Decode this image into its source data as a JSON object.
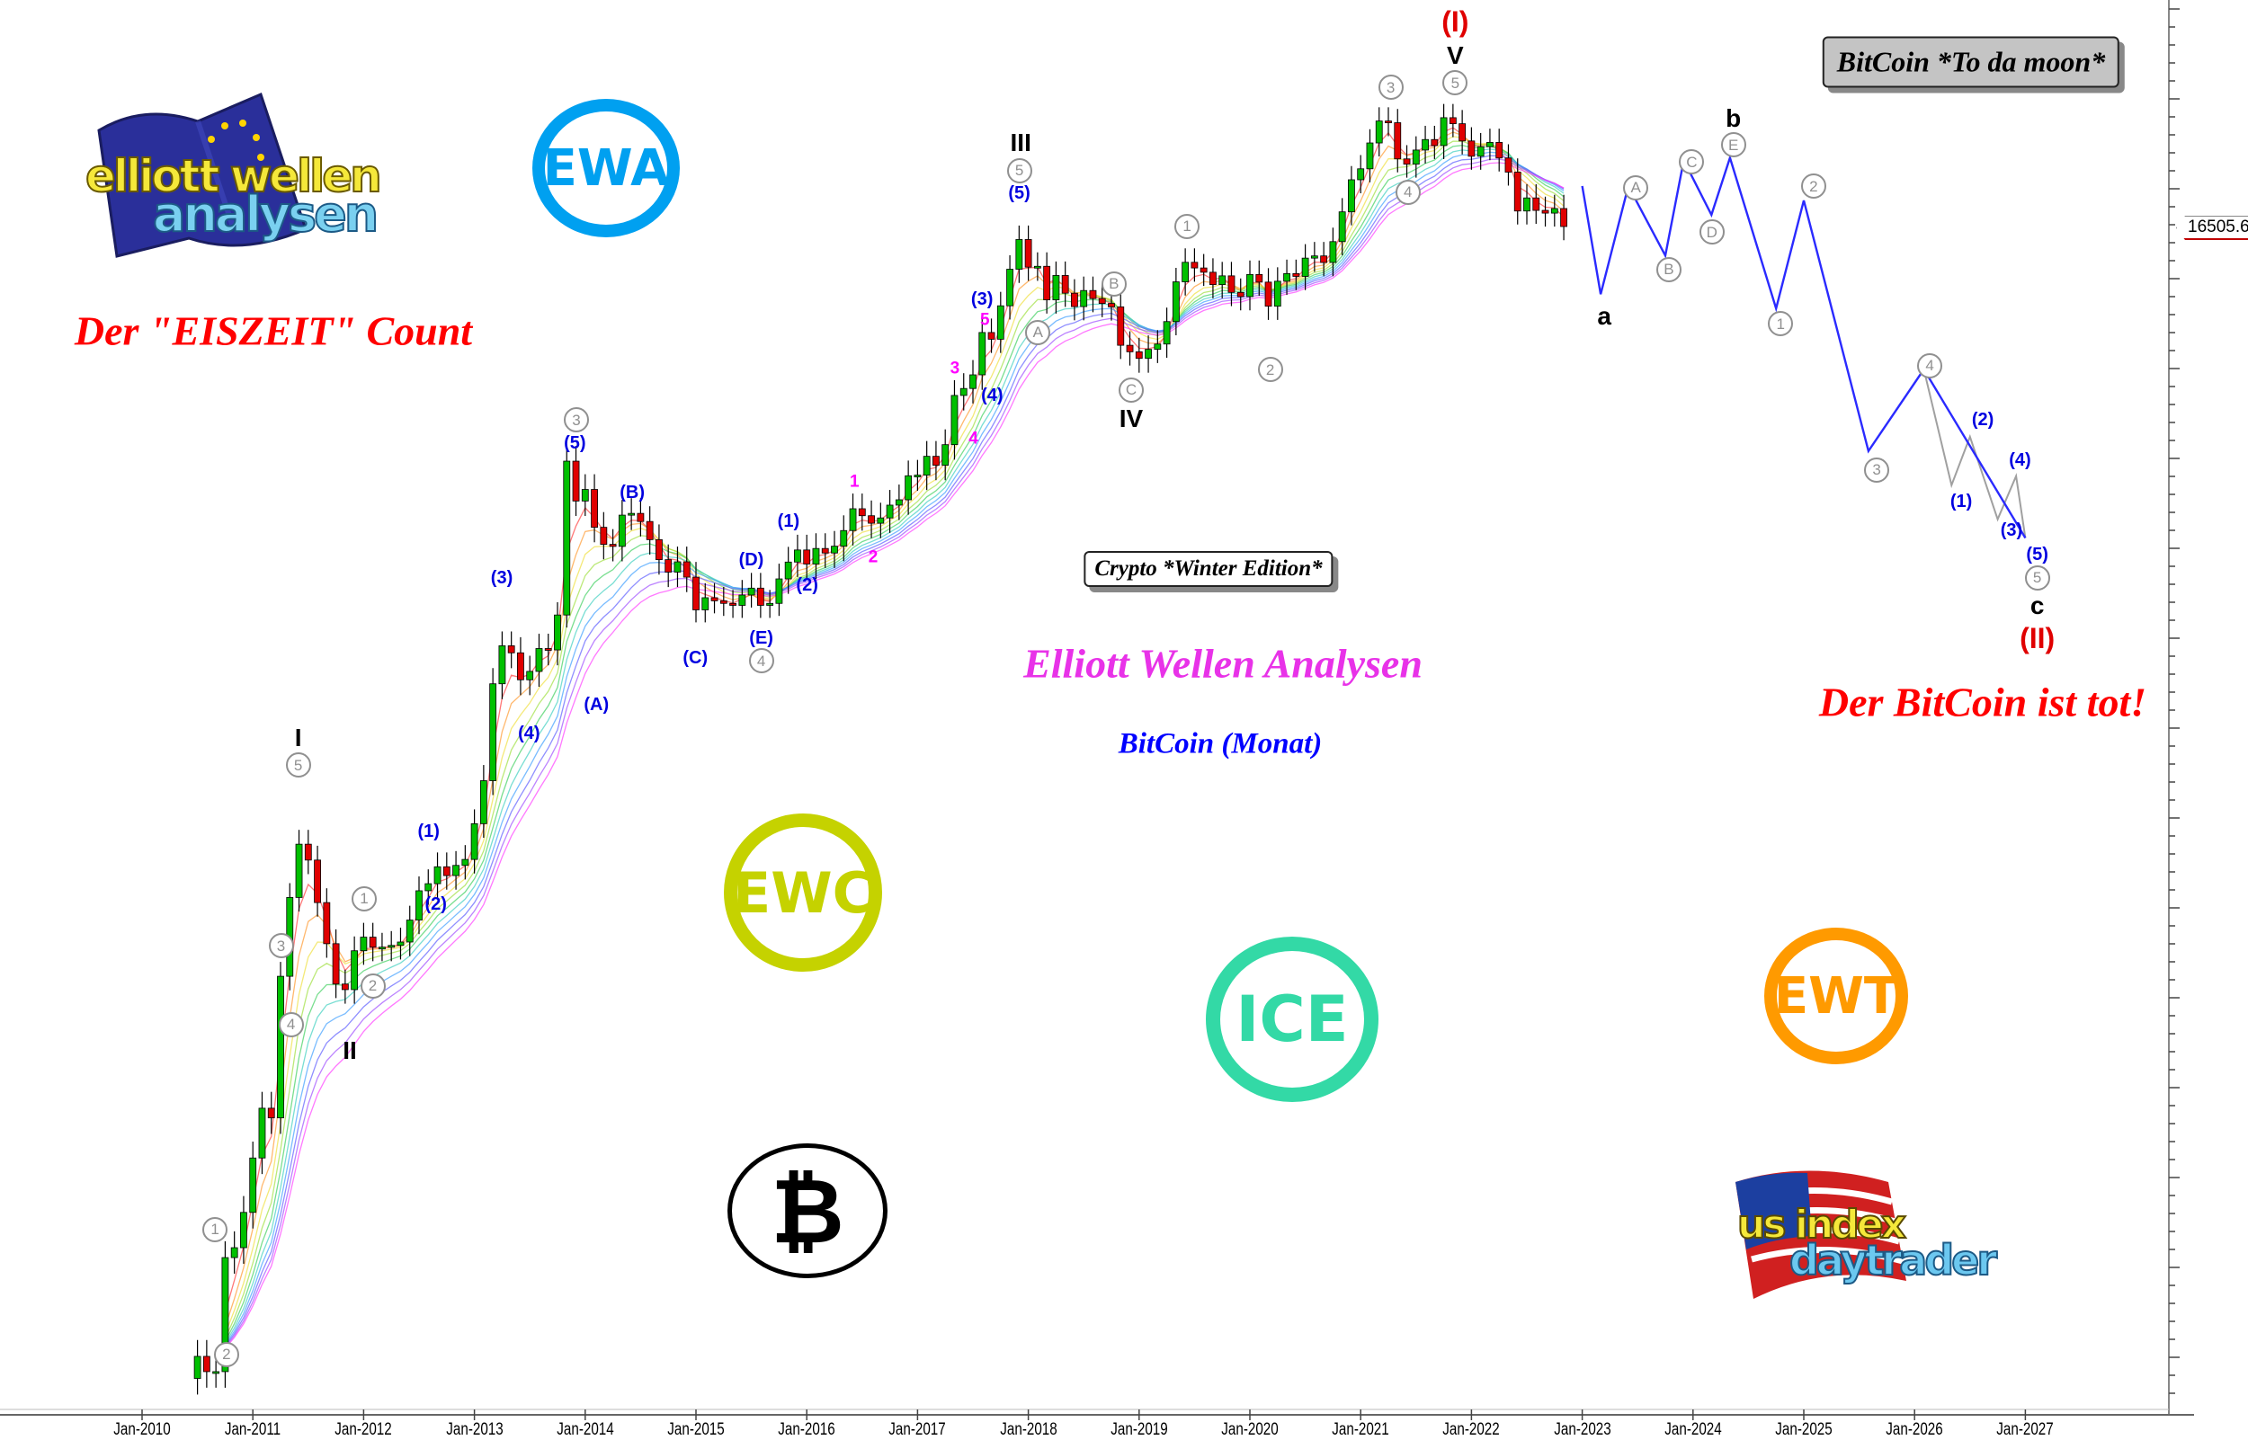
{
  "chart_data": {
    "type": "candlestick",
    "scale": "log",
    "series_start": "2010-07",
    "frequency": "monthly",
    "closes": [
      0.07,
      0.06,
      0.06,
      0.19,
      0.21,
      0.3,
      0.52,
      0.86,
      0.78,
      3.5,
      8.7,
      16.1,
      13.4,
      8.2,
      5.1,
      3.2,
      3.0,
      4.7,
      5.5,
      4.9,
      4.9,
      5.0,
      5.2,
      6.7,
      9.4,
      10.2,
      12.4,
      11.2,
      12.6,
      13.5,
      20.4,
      33.4,
      93,
      139,
      129,
      97,
      106,
      135,
      133,
      203,
      1129,
      732,
      830,
      550,
      457,
      447,
      628,
      640,
      586,
      481,
      387,
      338,
      378,
      320,
      217,
      254,
      244,
      236,
      230,
      263,
      284,
      230,
      236,
      314,
      377,
      430,
      369,
      437,
      416,
      448,
      531,
      673,
      624,
      575,
      609,
      700,
      742,
      963,
      970,
      1190,
      1080,
      1350,
      2300,
      2480,
      2875,
      4700,
      4340,
      6450,
      9950,
      14150,
      10200,
      10300,
      6920,
      9240,
      7490,
      6390,
      7730,
      7030,
      6630,
      6370,
      4040,
      3740,
      3460,
      3850,
      4100,
      5350,
      8570,
      10800,
      10100,
      9600,
      8290,
      9200,
      7560,
      7190,
      9350,
      8540,
      6420,
      8630,
      9450,
      9140,
      11350,
      11650,
      10780,
      13800,
      19700,
      29000,
      33100,
      45200,
      58900,
      57700,
      37300,
      35000,
      41500,
      47100,
      43800,
      61300,
      57000,
      46300,
      38500,
      43200,
      45500,
      37700,
      31800,
      19900,
      23300,
      20050,
      19400,
      20500,
      16505.63
    ],
    "last_price": "16505.63",
    "x_ticks": [
      "Jan-2010",
      "Jan-2011",
      "Jan-2012",
      "Jan-2013",
      "Jan-2014",
      "Jan-2015",
      "Jan-2016",
      "Jan-2017",
      "Jan-2018",
      "Jan-2019",
      "Jan-2020",
      "Jan-2021",
      "Jan-2022",
      "Jan-2023",
      "Jan-2024",
      "Jan-2025",
      "Jan-2026",
      "Jan-2027"
    ],
    "forecast_path": [
      {
        "date": "2023-01",
        "price": 26900
      },
      {
        "date": "2023-03",
        "price": 7400,
        "label": "a"
      },
      {
        "date": "2023-06",
        "price": 26900,
        "label": "A"
      },
      {
        "date": "2023-10",
        "price": 11700,
        "label": "B"
      },
      {
        "date": "2023-12",
        "price": 36700,
        "label": "C"
      },
      {
        "date": "2024-03",
        "price": 19000,
        "label": "D"
      },
      {
        "date": "2024-05",
        "price": 37800,
        "label": "E / b"
      },
      {
        "date": "2024-10",
        "price": 6250,
        "label": "1"
      },
      {
        "date": "2025-01",
        "price": 22600,
        "label": "2"
      },
      {
        "date": "2025-08",
        "price": 1260,
        "label": "3"
      },
      {
        "date": "2026-02",
        "price": 3050,
        "label": "4"
      },
      {
        "date": "2027-01",
        "price": 490,
        "label": "5 / c / (II)"
      }
    ],
    "forecast_subwaves": [
      {
        "date": "2026-02",
        "price": 3050
      },
      {
        "date": "2026-05",
        "price": 870,
        "label": "(1)"
      },
      {
        "date": "2026-07",
        "price": 1470,
        "label": "(2)"
      },
      {
        "date": "2026-10",
        "price": 600,
        "label": "(3)"
      },
      {
        "date": "2026-12",
        "price": 960,
        "label": "(4)"
      },
      {
        "date": "2027-01",
        "price": 490,
        "label": "(5)"
      }
    ],
    "colors": {
      "up": "#00c000",
      "down": "#e00000",
      "forecast": "#2a2aff",
      "subwave": "#a0a0a0"
    },
    "grid": false
  },
  "annotations": [
    {
      "text": "I",
      "style": "primary"
    },
    {
      "text": "II",
      "style": "primary"
    },
    {
      "text": "III",
      "style": "primary"
    },
    {
      "text": "IV",
      "style": "primary"
    },
    {
      "text": "V",
      "style": "primary"
    },
    {
      "text": "a",
      "style": "primary"
    },
    {
      "text": "b",
      "style": "primary"
    },
    {
      "text": "c",
      "style": "primary"
    },
    {
      "text": "(I)",
      "style": "red"
    },
    {
      "text": "(II)",
      "style": "red"
    },
    {
      "text": "2",
      "style": "circle"
    },
    {
      "text": "1",
      "style": "circle"
    },
    {
      "text": "4",
      "style": "circle"
    },
    {
      "text": "3",
      "style": "circle"
    },
    {
      "text": "5",
      "style": "circle"
    },
    {
      "text": "1",
      "style": "circle"
    },
    {
      "text": "2",
      "style": "circle"
    },
    {
      "text": "3",
      "style": "circle"
    },
    {
      "text": "4",
      "style": "circle"
    },
    {
      "text": "5",
      "style": "circle"
    },
    {
      "text": "A",
      "style": "circle"
    },
    {
      "text": "B",
      "style": "circle"
    },
    {
      "text": "C",
      "style": "circle"
    },
    {
      "text": "1",
      "style": "circle"
    },
    {
      "text": "2",
      "style": "circle"
    },
    {
      "text": "3",
      "style": "circle"
    },
    {
      "text": "4",
      "style": "circle"
    },
    {
      "text": "5",
      "style": "circle"
    },
    {
      "text": "A",
      "style": "circle"
    },
    {
      "text": "B",
      "style": "circle"
    },
    {
      "text": "C",
      "style": "circle"
    },
    {
      "text": "D",
      "style": "circle"
    },
    {
      "text": "E",
      "style": "circle"
    },
    {
      "text": "1",
      "style": "circle"
    },
    {
      "text": "2",
      "style": "circle"
    },
    {
      "text": "3",
      "style": "circle"
    },
    {
      "text": "4",
      "style": "circle"
    },
    {
      "text": "5",
      "style": "circle"
    },
    {
      "text": "(1)",
      "style": "blue"
    },
    {
      "text": "(2)",
      "style": "blue"
    },
    {
      "text": "(3)",
      "style": "blue"
    },
    {
      "text": "(4)",
      "style": "blue"
    },
    {
      "text": "(5)",
      "style": "blue"
    },
    {
      "text": "(A)",
      "style": "blue"
    },
    {
      "text": "(B)",
      "style": "blue"
    },
    {
      "text": "(C)",
      "style": "blue"
    },
    {
      "text": "(D)",
      "style": "blue"
    },
    {
      "text": "(E)",
      "style": "blue"
    },
    {
      "text": "(1)",
      "style": "blue"
    },
    {
      "text": "(2)",
      "style": "blue"
    },
    {
      "text": "(3)",
      "style": "blue"
    },
    {
      "text": "(4)",
      "style": "blue"
    },
    {
      "text": "(5)",
      "style": "blue"
    },
    {
      "text": "(1)",
      "style": "blue"
    },
    {
      "text": "(2)",
      "style": "blue"
    },
    {
      "text": "(3)",
      "style": "blue"
    },
    {
      "text": "(4)",
      "style": "blue"
    },
    {
      "text": "(5)",
      "style": "blue"
    },
    {
      "text": "1",
      "style": "magenta"
    },
    {
      "text": "2",
      "style": "magenta"
    },
    {
      "text": "3",
      "style": "magenta"
    },
    {
      "text": "4",
      "style": "magenta"
    },
    {
      "text": "5",
      "style": "magenta"
    }
  ],
  "texts": {
    "eiszeit": "Der \"EISZEIT\" Count",
    "tot": "Der BitCoin ist tot!",
    "brand": "Elliott Wellen Analysen",
    "instrument": "BitCoin (Monat)",
    "winter_box": "Crypto *Winter Edition*",
    "moon_box": "BitCoin *To da moon*"
  },
  "logos": {
    "ewa": "EWA",
    "ewc": "EWC",
    "ice": "ICE",
    "ewt": "EWT",
    "ewa_logo_line1": "elliott wellen",
    "ewa_logo_line2": "analysen",
    "usid_line1": "us index",
    "usid_line2": "daytrader",
    "colors": {
      "ewa": "#00a0f0",
      "ewc": "#c5d200",
      "ice": "#33d9a6",
      "ewt": "#ff9a00"
    }
  }
}
